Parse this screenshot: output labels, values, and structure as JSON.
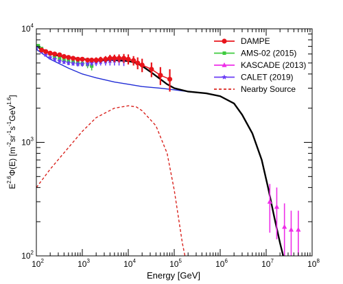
{
  "chart_data": {
    "type": "line",
    "title": "",
    "xlabel": "Energy [GeV]",
    "ylabel": {
      "prefix": "E",
      "prefix_sup": "2.6",
      "middle": "Φ(E)  [m",
      "s1": "-2",
      "t1": "sr",
      "s2": "-1",
      "t2": "s",
      "s3": "-1",
      "t3": "GeV",
      "s4": "1.6",
      "suffix": "]"
    },
    "xscale": "log",
    "yscale": "log",
    "xlim": [
      100,
      100000000
    ],
    "ylim": [
      100,
      10000
    ],
    "grid": false,
    "legend_position": "top-right",
    "x_ticks": [
      {
        "base": "10",
        "exp": "2",
        "value": 100
      },
      {
        "base": "10",
        "exp": "3",
        "value": 1000
      },
      {
        "base": "10",
        "exp": "4",
        "value": 10000
      },
      {
        "base": "10",
        "exp": "5",
        "value": 100000
      },
      {
        "base": "10",
        "exp": "6",
        "value": 1000000
      },
      {
        "base": "10",
        "exp": "7",
        "value": 10000000
      },
      {
        "base": "10",
        "exp": "8",
        "value": 100000000
      }
    ],
    "y_ticks": [
      {
        "base": "10",
        "exp": "2",
        "value": 100
      },
      {
        "base": "10",
        "exp": "3",
        "value": 1000
      },
      {
        "base": "10",
        "exp": "4",
        "value": 10000
      }
    ],
    "series": [
      {
        "name": "DAMPE",
        "kind": "points",
        "marker": "circle",
        "color": "#e8141b",
        "x": [
          130,
          160,
          200,
          250,
          320,
          400,
          500,
          630,
          800,
          1000,
          1300,
          1600,
          2000,
          2500,
          3200,
          4000,
          5000,
          6300,
          8000,
          10000,
          13000,
          16000,
          20000,
          32000,
          50000,
          80000
        ],
        "y": [
          6500,
          6300,
          6100,
          6000,
          5900,
          5700,
          5600,
          5500,
          5400,
          5400,
          5300,
          5300,
          5300,
          5350,
          5400,
          5500,
          5500,
          5500,
          5500,
          5400,
          5250,
          5000,
          4800,
          4400,
          3900,
          3600
        ],
        "err_low": [
          250,
          200,
          200,
          200,
          200,
          200,
          200,
          200,
          200,
          220,
          250,
          250,
          300,
          320,
          350,
          400,
          420,
          450,
          500,
          550,
          500,
          600,
          650,
          650,
          700,
          800
        ],
        "err_high": [
          250,
          200,
          200,
          200,
          200,
          200,
          200,
          200,
          200,
          220,
          250,
          250,
          300,
          320,
          350,
          400,
          420,
          450,
          500,
          550,
          500,
          600,
          650,
          650,
          700,
          800
        ]
      },
      {
        "name": "AMS-02 (2015)",
        "kind": "points",
        "marker": "square",
        "color": "#3ecb3e",
        "x": [
          110,
          130,
          160,
          200,
          250,
          320,
          400,
          500,
          630,
          800,
          1000,
          1300,
          1600
        ],
        "y": [
          7100,
          6700,
          6300,
          6000,
          5700,
          5500,
          5300,
          5200,
          5100,
          5000,
          4950,
          4850,
          4700
        ],
        "err_low": [
          150,
          150,
          150,
          150,
          200,
          200,
          200,
          250,
          250,
          300,
          300,
          350,
          400
        ],
        "err_high": [
          150,
          150,
          150,
          150,
          200,
          200,
          200,
          250,
          250,
          300,
          300,
          350,
          400
        ]
      },
      {
        "name": "KASCADE (2013)",
        "kind": "points",
        "marker": "triangle",
        "color": "#ee2de8",
        "x": [
          12000000,
          17000000,
          25000000,
          35000000,
          50000000
        ],
        "y": [
          300,
          270,
          180,
          170,
          170
        ],
        "err_low": [
          140,
          130,
          80,
          70,
          70
        ],
        "err_high": [
          130,
          130,
          110,
          80,
          80
        ]
      },
      {
        "name": "CALET (2019)",
        "kind": "points",
        "marker": "star",
        "color": "#6a3df5",
        "x": [
          100,
          130,
          160,
          200,
          250,
          320,
          400,
          500,
          630,
          800,
          1000,
          1300,
          1600,
          2000,
          2500,
          3200,
          4000,
          5000,
          6300,
          8000
        ],
        "y": [
          6800,
          6300,
          5900,
          5600,
          5400,
          5200,
          5100,
          5000,
          4950,
          4900,
          4900,
          4950,
          5000,
          5050,
          5100,
          5150,
          5200,
          5250,
          5300,
          5300
        ],
        "err_low": [
          250,
          200,
          200,
          200,
          200,
          200,
          200,
          220,
          220,
          250,
          250,
          300,
          300,
          350,
          350,
          400,
          450,
          500,
          550,
          600
        ],
        "err_high": [
          250,
          200,
          200,
          200,
          200,
          200,
          200,
          220,
          220,
          250,
          250,
          300,
          300,
          350,
          350,
          400,
          450,
          500,
          550,
          600
        ]
      },
      {
        "name": "Nearby Source",
        "kind": "line",
        "dash": true,
        "color": "#d9221d",
        "x": [
          100,
          200,
          500,
          1000,
          2000,
          5000,
          10000,
          15000,
          20000,
          40000,
          70000,
          100000,
          130000,
          150000,
          180000
        ],
        "y": [
          400,
          580,
          900,
          1250,
          1650,
          2000,
          2100,
          2050,
          1900,
          1400,
          800,
          380,
          190,
          130,
          90
        ]
      },
      {
        "kind": "line",
        "dash": false,
        "color": "#1f2bd6",
        "x": [
          100,
          200,
          500,
          1000,
          2000,
          5000,
          10000,
          20000,
          50000,
          100000,
          200000
        ],
        "y": [
          6600,
          5400,
          4500,
          4000,
          3700,
          3400,
          3250,
          3100,
          3000,
          2900,
          2800
        ]
      },
      {
        "kind": "line",
        "dash": false,
        "color": "#000000",
        "x": [
          100,
          200,
          300,
          500,
          1000,
          2000,
          5000,
          10000,
          15000,
          20000,
          30000,
          50000,
          70000,
          100000,
          200000,
          500000,
          1000000,
          2000000,
          3000000,
          5000000,
          8000000,
          11000000,
          15000000,
          20000000,
          25000000
        ],
        "y": [
          7000,
          6100,
          5800,
          5600,
          5400,
          5300,
          5300,
          5200,
          5000,
          4700,
          4200,
          3600,
          3250,
          3000,
          2800,
          2700,
          2550,
          2200,
          1750,
          1200,
          700,
          400,
          220,
          130,
          90
        ]
      }
    ]
  }
}
